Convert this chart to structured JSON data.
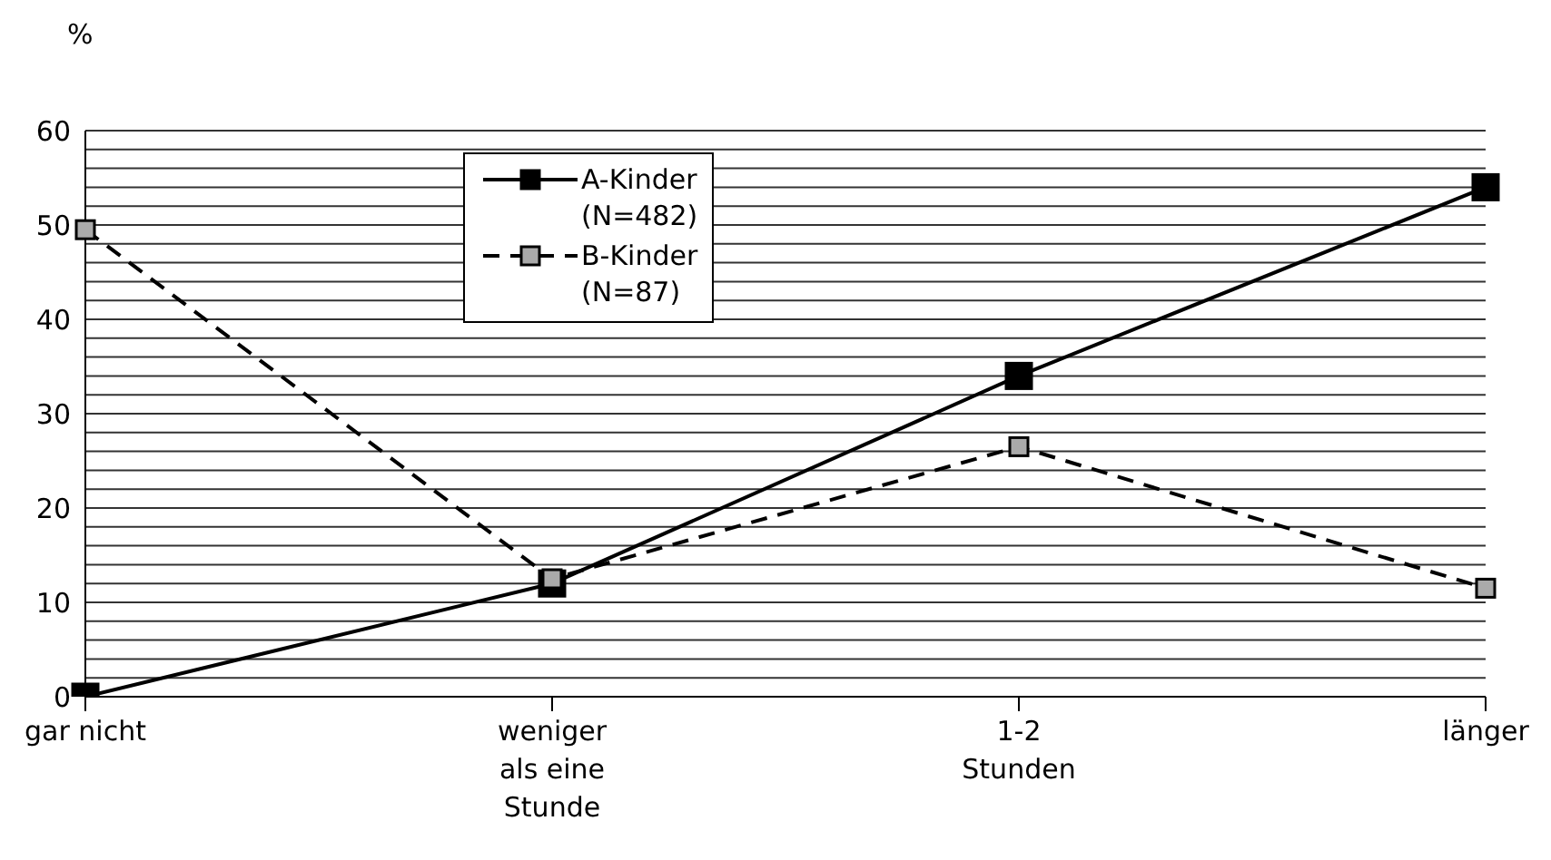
{
  "chart_data": {
    "type": "line",
    "ylabel": "%",
    "categories": [
      "gar nicht",
      "weniger\nals eine\nStunde",
      "1-2\nStunden",
      "länger"
    ],
    "series": [
      {
        "name": "A-Kinder\n(N=482)",
        "color": "#000000",
        "values": [
          0,
          12,
          34,
          54
        ],
        "line_style": "solid"
      },
      {
        "name": "B-Kinder\n(N=87)",
        "color": "#000000",
        "values": [
          49.5,
          12.5,
          26.5,
          11.5
        ],
        "line_style": "dashed"
      }
    ],
    "ylim": [
      0,
      60
    ],
    "yticks": [
      0,
      {
        "value": 2,
        "label": null
      },
      {
        "value": 4,
        "label": null
      },
      {
        "value": 6,
        "label": null
      },
      {
        "value": 8,
        "label": null
      },
      10,
      {
        "value": 12,
        "label": null
      },
      {
        "value": 14,
        "label": null
      },
      {
        "value": 16,
        "label": null
      },
      {
        "value": 18,
        "label": null
      },
      20,
      {
        "value": 22,
        "label": null
      },
      {
        "value": 24,
        "label": null
      },
      {
        "value": 26,
        "label": null
      },
      {
        "value": 28,
        "label": null
      },
      30,
      {
        "value": 32,
        "label": null
      },
      {
        "value": 34,
        "label": null
      },
      {
        "value": 36,
        "label": null
      },
      {
        "value": 38,
        "label": null
      },
      40,
      {
        "value": 42,
        "label": null
      },
      {
        "value": 44,
        "label": null
      },
      {
        "value": 46,
        "label": null
      },
      {
        "value": 48,
        "label": null
      },
      50,
      {
        "value": 52,
        "label": null
      },
      {
        "value": 54,
        "label": null
      },
      {
        "value": 56,
        "label": null
      },
      {
        "value": 58,
        "label": null
      },
      60
    ],
    "grid": "y",
    "legend": "top",
    "marker": "square"
  }
}
